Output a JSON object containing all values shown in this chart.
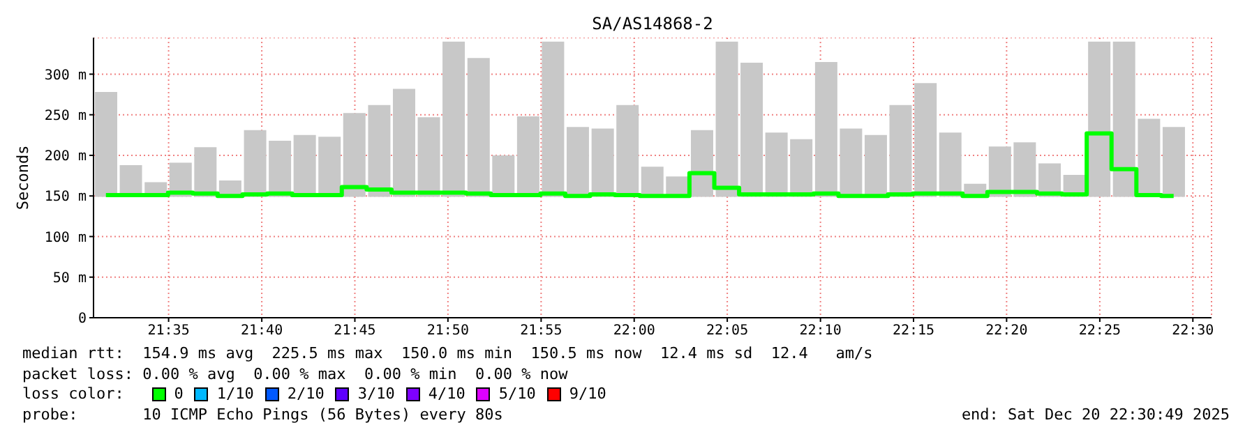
{
  "chart_data": {
    "type": "bar",
    "title": "SA/AS14868-2",
    "ylabel": "Seconds",
    "x": [
      21.5272,
      21.5494,
      21.5717,
      21.5939,
      21.6161,
      21.6383,
      21.6606,
      21.6828,
      21.705,
      21.7272,
      21.7494,
      21.7717,
      21.7939,
      21.8161,
      21.8383,
      21.8606,
      21.8828,
      21.905,
      21.9272,
      21.9494,
      21.9717,
      21.9939,
      22.0161,
      22.0383,
      22.0606,
      22.0828,
      22.105,
      22.1272,
      22.1494,
      22.1717,
      22.1939,
      22.2161,
      22.2383,
      22.2606,
      22.2828,
      22.305,
      22.3272,
      22.3494,
      22.3717,
      22.3939,
      22.4161,
      22.4383,
      22.4606,
      22.4828
    ],
    "series": [
      {
        "color": "#c8c8c8",
        "base": [
          149,
          149,
          149,
          149,
          149,
          149,
          149,
          149,
          149,
          149,
          149,
          149,
          149,
          149,
          149,
          149,
          149,
          149,
          149,
          149,
          149,
          149,
          149,
          149,
          149,
          149,
          149,
          149,
          149,
          149,
          149,
          149,
          149,
          149,
          149,
          149,
          149,
          149,
          149,
          149,
          149,
          149,
          149,
          149
        ],
        "values": [
          129,
          39,
          18,
          42,
          61,
          20,
          82,
          69,
          76,
          74,
          103,
          113,
          133,
          98,
          191,
          171,
          51,
          99,
          191,
          86,
          84,
          113,
          37,
          25,
          82,
          191,
          165,
          79,
          71,
          166,
          84,
          76,
          113,
          140,
          79,
          16,
          62,
          67,
          41,
          27,
          191,
          191,
          96,
          86
        ]
      },
      {
        "type": "step",
        "color": "#00ff00",
        "values": [
          151,
          151,
          151,
          154,
          153,
          150,
          152,
          153,
          151,
          151,
          161,
          158,
          154,
          154,
          154,
          153,
          151,
          151,
          153,
          150,
          152,
          151,
          150,
          150,
          178,
          160,
          152,
          152,
          152,
          153,
          150,
          150,
          152,
          153,
          153,
          150,
          155,
          155,
          153,
          152,
          227,
          183,
          151,
          150
        ]
      }
    ],
    "xlim": [
      21.5161,
      22.5167
    ],
    "xticks": [
      {
        "value": 21.5833,
        "label": "21:35"
      },
      {
        "value": 21.6667,
        "label": "21:40"
      },
      {
        "value": 21.75,
        "label": "21:45"
      },
      {
        "value": 21.8333,
        "label": "21:50"
      },
      {
        "value": 21.9167,
        "label": "21:55"
      },
      {
        "value": 22,
        "label": "22:00"
      },
      {
        "value": 22.0833,
        "label": "22:05"
      },
      {
        "value": 22.1667,
        "label": "22:10"
      },
      {
        "value": 22.25,
        "label": "22:15"
      },
      {
        "value": 22.3333,
        "label": "22:20"
      },
      {
        "value": 22.4167,
        "label": "22:25"
      },
      {
        "value": 22.5,
        "label": "22:30"
      }
    ],
    "ylim": [
      0,
      345
    ],
    "yticks": [
      0,
      {
        "value": 50,
        "label": "50 m"
      },
      {
        "value": 100,
        "label": "100 m"
      },
      {
        "value": 150,
        "label": "150 m"
      },
      {
        "value": 200,
        "label": "200 m"
      },
      {
        "value": 250,
        "label": "250 m"
      },
      {
        "value": 300,
        "label": "300 m"
      }
    ],
    "grid": true,
    "legend": false,
    "annotations": [
      "median rtt:  154.9 ms avg  225.5 ms max  150.0 ms min  150.5 ms now  12.4 ms sd  12.4   am/s",
      "packet loss: 0.00 % avg  0.00 % max  0.00 % min  0.00 % now",
      "loss color:",
      "0",
      "1/10",
      "2/10",
      "3/10",
      "4/10",
      "5/10",
      "9/10",
      "probe:       10 ICMP Echo Pings (56 Bytes) every 80s",
      "end: Sat Dec 20 22:30:49 2025"
    ]
  }
}
